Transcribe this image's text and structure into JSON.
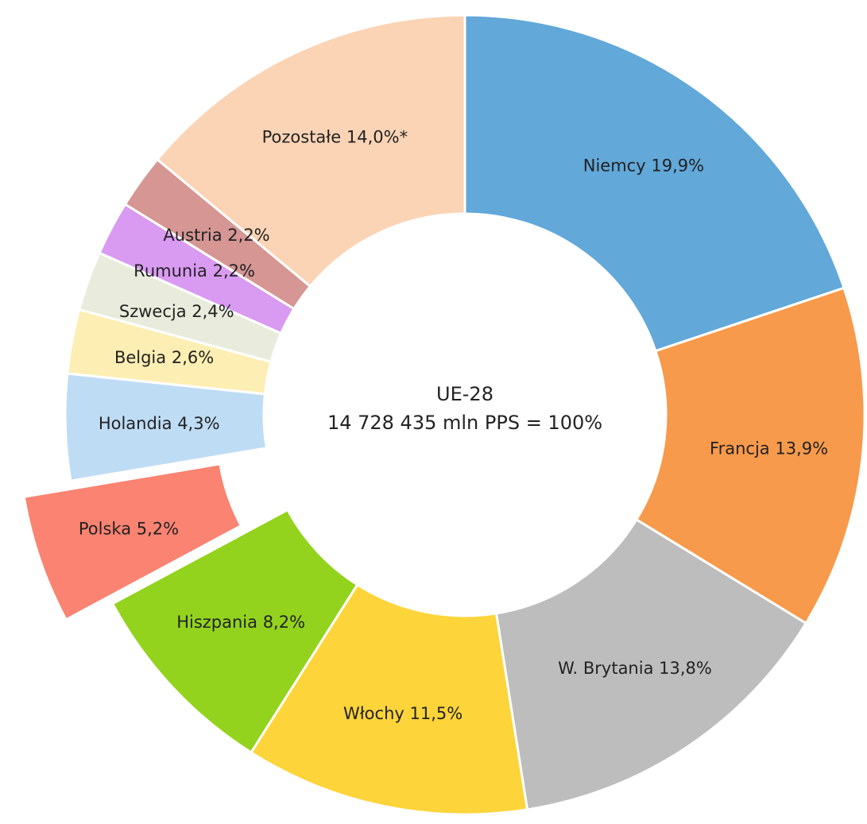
{
  "chart_data": {
    "type": "donut",
    "categories": [
      "Niemcy",
      "Francja",
      "W. Brytania",
      "Włochy",
      "Hiszpania",
      "Polska",
      "Holandia",
      "Belgia",
      "Szwecja",
      "Rumunia",
      "Austria",
      "Pozostałe"
    ],
    "values": [
      19.9,
      13.9,
      13.8,
      11.5,
      8.2,
      5.2,
      4.3,
      2.6,
      2.4,
      2.2,
      2.2,
      14.0
    ],
    "value_labels": [
      "19,9%",
      "13,9%",
      "13,8%",
      "11,5%",
      "8,2%",
      "5,2%",
      "4,3%",
      "2,6%",
      "2,4%",
      "2,2%",
      "2,2%",
      "14,0%*"
    ],
    "colors": [
      "#62a8d9",
      "#f79a4b",
      "#bdbdbd",
      "#fdd43a",
      "#93d31e",
      "#fa8372",
      "#bfdcf5",
      "#fdeeb3",
      "#e9ecdd",
      "#d99af2",
      "#d59694",
      "#fbd4b5"
    ],
    "exploded": "Polska",
    "center_label": [
      "UE-28",
      "14 728 435 mln PPS = 100%"
    ]
  }
}
